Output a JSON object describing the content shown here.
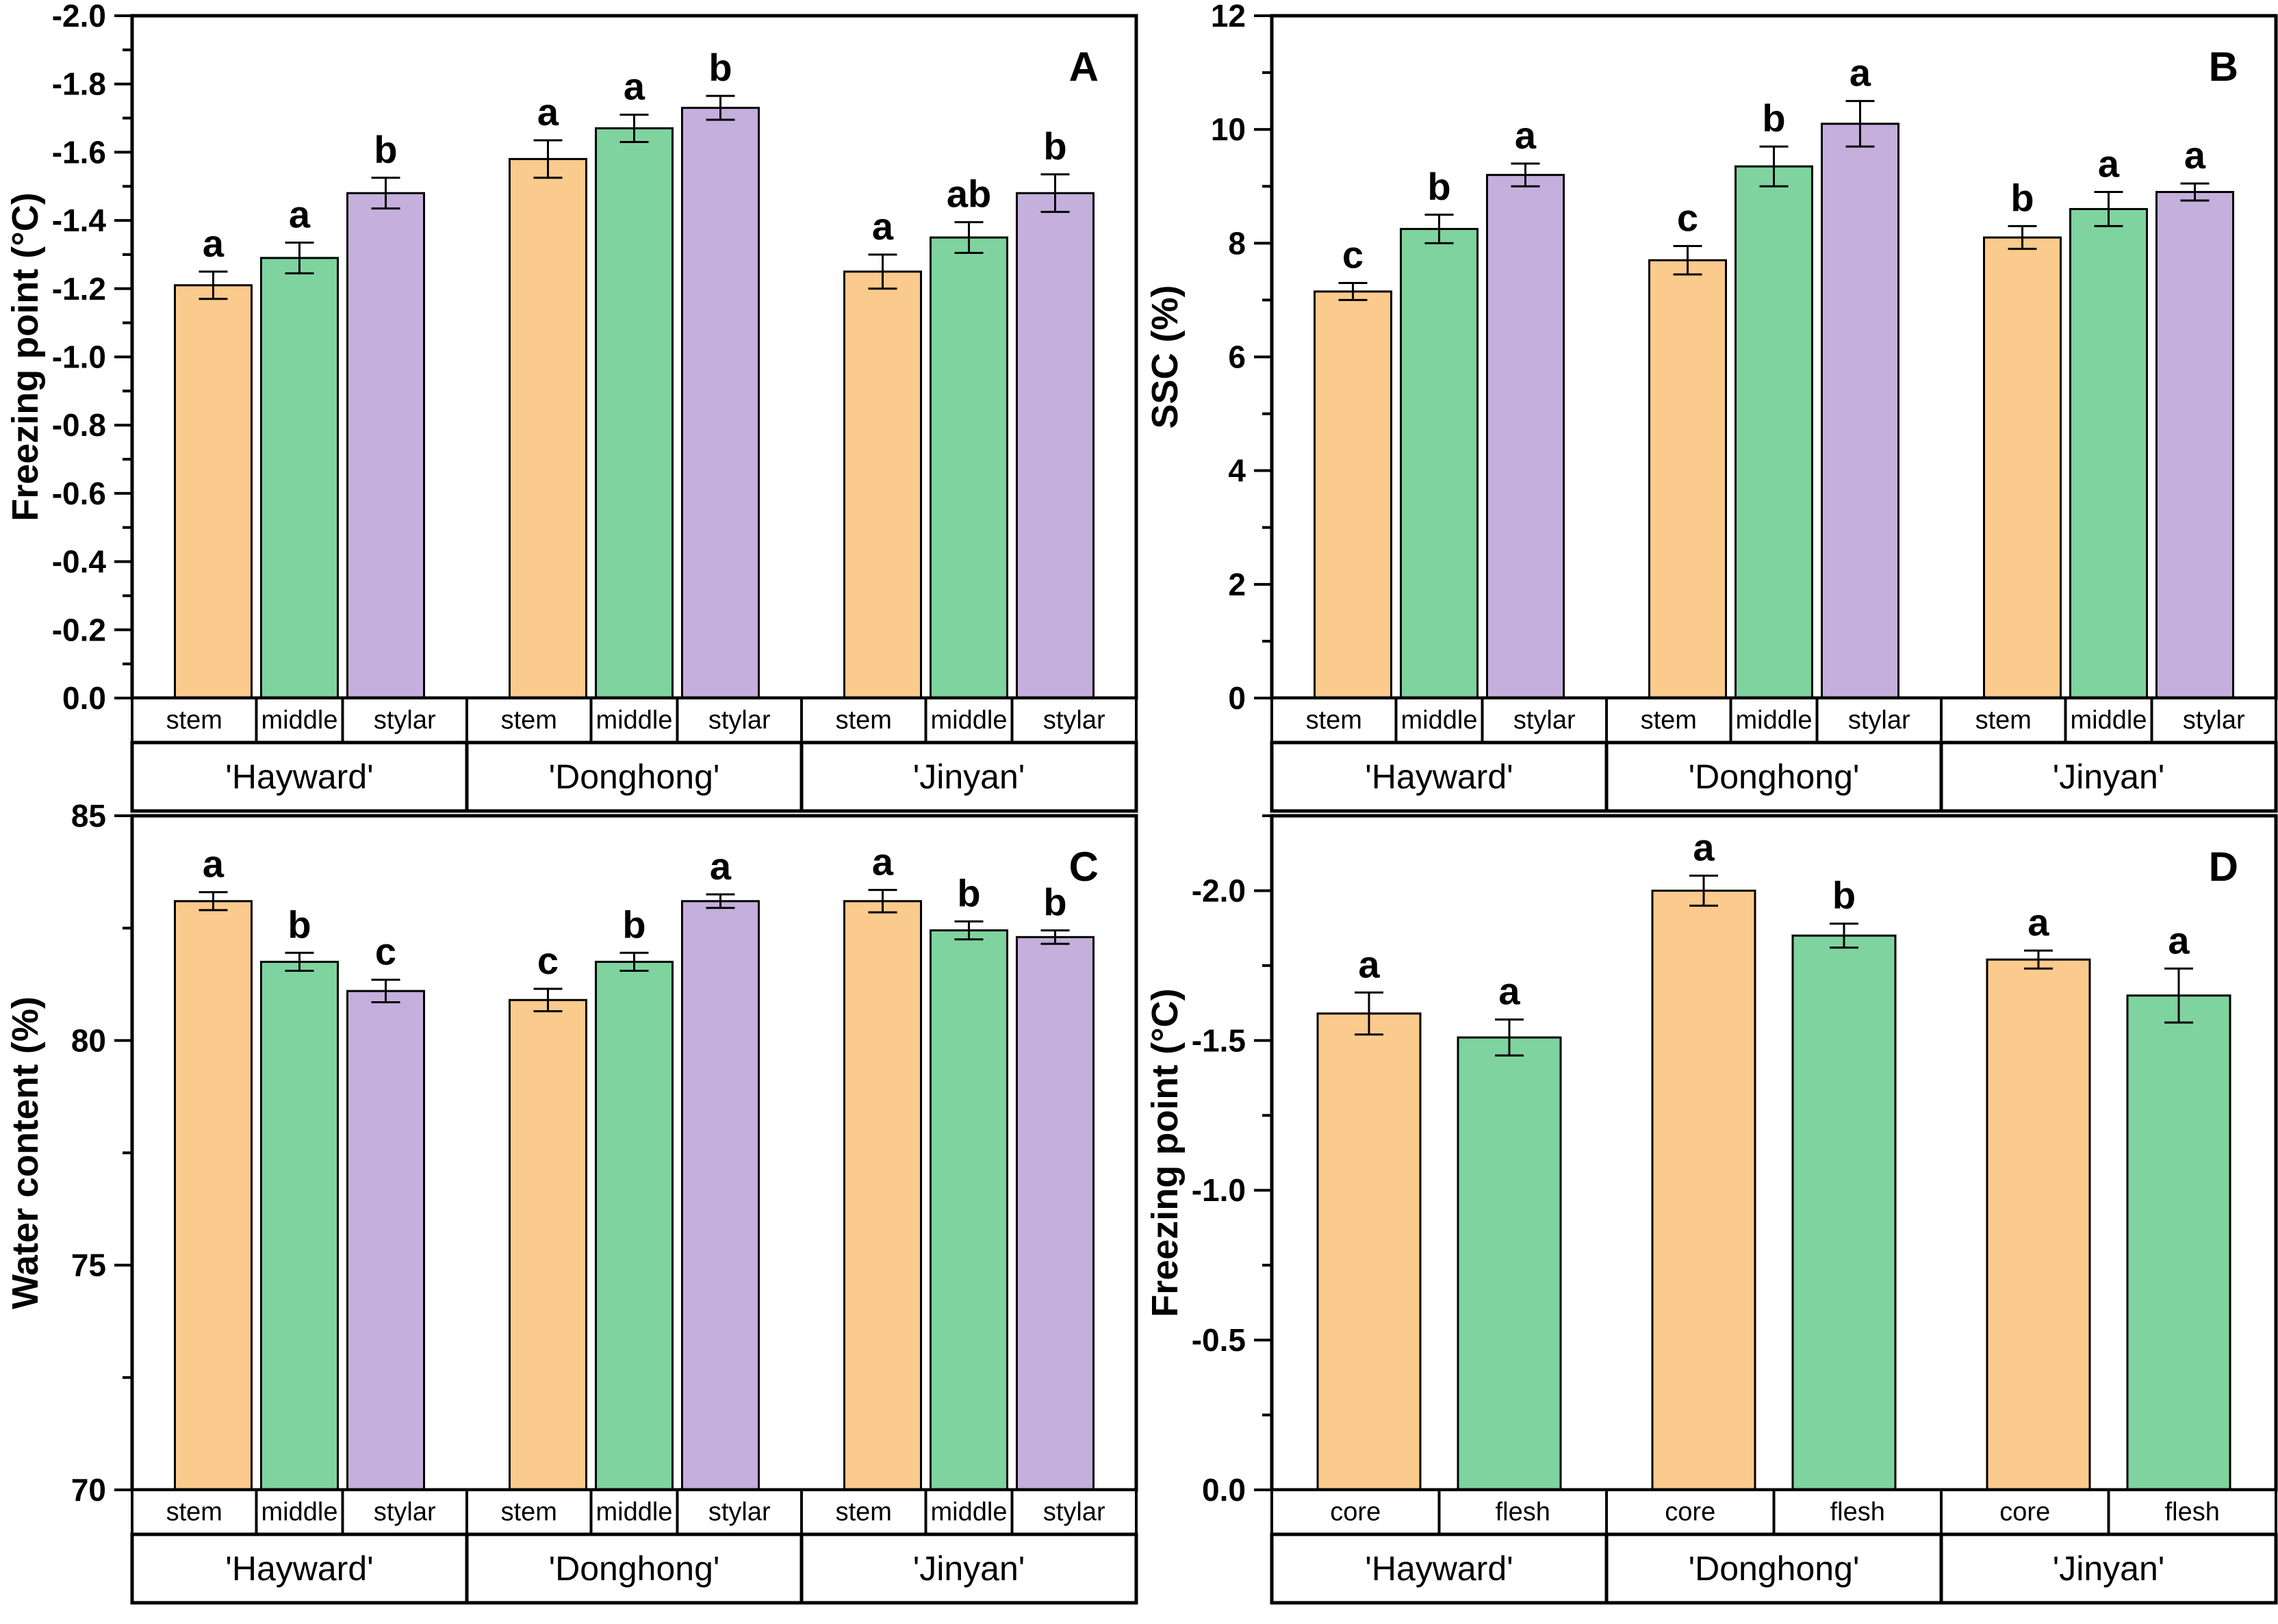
{
  "figure": {
    "background": "#ffffff",
    "frame_color": "#000000",
    "bar_colors": {
      "stem": "#FBCA8D",
      "middle": "#7FD39F",
      "stylar": "#C5AFDC",
      "core": "#FBCA8D",
      "flesh": "#7FD39F"
    }
  },
  "chart_data": [
    {
      "type": "bar",
      "panel_label": "A",
      "ylabel": "Freezing point (°C)",
      "y_axis": {
        "range": [
          -2.0,
          0.0
        ],
        "inverted": true,
        "major_step": 0.2,
        "minor_step": 0.1,
        "decimals": 1
      },
      "categories": [
        "'Hayward'",
        "'Donghong'",
        "'Jinyan'"
      ],
      "positions": [
        "stem",
        "middle",
        "stylar"
      ],
      "series": [
        {
          "group": "'Hayward'",
          "values": [
            -1.21,
            -1.29,
            -1.48
          ],
          "errors": [
            0.04,
            0.045,
            0.045
          ],
          "letters": [
            "a",
            "a",
            "b"
          ]
        },
        {
          "group": "'Donghong'",
          "values": [
            -1.58,
            -1.67,
            -1.73
          ],
          "errors": [
            0.055,
            0.04,
            0.035
          ],
          "letters": [
            "a",
            "a",
            "b"
          ]
        },
        {
          "group": "'Jinyan'",
          "values": [
            -1.25,
            -1.35,
            -1.48
          ],
          "errors": [
            0.05,
            0.045,
            0.055
          ],
          "letters": [
            "a",
            "ab",
            "b"
          ]
        }
      ]
    },
    {
      "type": "bar",
      "panel_label": "B",
      "ylabel": "SSC (%)",
      "y_axis": {
        "range": [
          0,
          12
        ],
        "inverted": false,
        "major_step": 2,
        "minor_step": 1,
        "decimals": 0
      },
      "categories": [
        "'Hayward'",
        "'Donghong'",
        "'Jinyan'"
      ],
      "positions": [
        "stem",
        "middle",
        "stylar"
      ],
      "series": [
        {
          "group": "'Hayward'",
          "values": [
            7.15,
            8.25,
            9.2
          ],
          "errors": [
            0.15,
            0.25,
            0.2
          ],
          "letters": [
            "c",
            "b",
            "a"
          ]
        },
        {
          "group": "'Donghong'",
          "values": [
            7.7,
            9.35,
            10.1
          ],
          "errors": [
            0.25,
            0.35,
            0.4
          ],
          "letters": [
            "c",
            "b",
            "a"
          ]
        },
        {
          "group": "'Jinyan'",
          "values": [
            8.1,
            8.6,
            8.9
          ],
          "errors": [
            0.2,
            0.3,
            0.15
          ],
          "letters": [
            "b",
            "a",
            "a"
          ]
        }
      ]
    },
    {
      "type": "bar",
      "panel_label": "C",
      "ylabel": "Water content (%)",
      "y_axis": {
        "range": [
          70,
          85
        ],
        "inverted": false,
        "major_step": 5,
        "minor_step": 2.5,
        "decimals": 0
      },
      "categories": [
        "'Hayward'",
        "'Donghong'",
        "'Jinyan'"
      ],
      "positions": [
        "stem",
        "middle",
        "stylar"
      ],
      "series": [
        {
          "group": "'Hayward'",
          "values": [
            83.1,
            81.75,
            81.1
          ],
          "errors": [
            0.2,
            0.2,
            0.25
          ],
          "letters": [
            "a",
            "b",
            "c"
          ]
        },
        {
          "group": "'Donghong'",
          "values": [
            80.9,
            81.75,
            83.1
          ],
          "errors": [
            0.25,
            0.2,
            0.15
          ],
          "letters": [
            "c",
            "b",
            "a"
          ]
        },
        {
          "group": "'Jinyan'",
          "values": [
            83.1,
            82.45,
            82.3
          ],
          "errors": [
            0.25,
            0.2,
            0.15
          ],
          "letters": [
            "a",
            "b",
            "b"
          ]
        }
      ]
    },
    {
      "type": "bar",
      "panel_label": "D",
      "ylabel": "Freezing point (°C)",
      "y_axis": {
        "range": [
          -2.25,
          0.0
        ],
        "inverted": true,
        "major_step": 0.5,
        "minor_step": 0.25,
        "decimals": 1
      },
      "categories": [
        "'Hayward'",
        "'Donghong'",
        "'Jinyan'"
      ],
      "positions": [
        "core",
        "flesh"
      ],
      "series": [
        {
          "group": "'Hayward'",
          "values": [
            -1.59,
            -1.51
          ],
          "errors": [
            0.07,
            0.06
          ],
          "letters": [
            "a",
            "a"
          ]
        },
        {
          "group": "'Donghong'",
          "values": [
            -2.0,
            -1.85
          ],
          "errors": [
            0.05,
            0.04
          ],
          "letters": [
            "a",
            "b"
          ]
        },
        {
          "group": "'Jinyan'",
          "values": [
            -1.77,
            -1.65
          ],
          "errors": [
            0.03,
            0.09
          ],
          "letters": [
            "a",
            "a"
          ]
        }
      ]
    }
  ]
}
